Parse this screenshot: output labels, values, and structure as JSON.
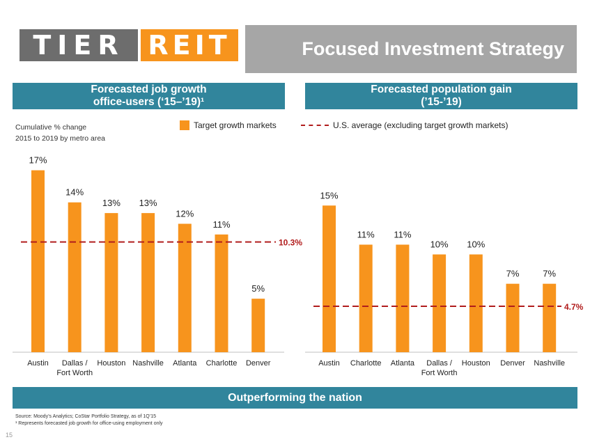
{
  "logo": {
    "part1": "TIER",
    "part2": "REIT"
  },
  "title": "Focused Investment Strategy",
  "left_header": {
    "line1": "Forecasted job growth",
    "line2": "office-users (‘15–’19)¹"
  },
  "right_header": {
    "line1": "Forecasted population gain",
    "line2": "(’15-’19)"
  },
  "note": {
    "line1": "Cumulative % change",
    "line2": "2015 to 2019 by metro area"
  },
  "legend": {
    "target": "Target growth markets",
    "us": "U.S. average (excluding target growth markets)"
  },
  "footer_banner": "Outperforming the nation",
  "source": {
    "line1": "Source: Moody’s Analytics; CoStar Portfolio Strategy, as of 1Q’15",
    "line2": "¹ Represents forecasted job growth for office-using employment only"
  },
  "page_number": "15",
  "colors": {
    "bar": "#f7941d",
    "ref": "#b11c1c",
    "header": "#31859c"
  },
  "chart_data": [
    {
      "type": "bar",
      "title": "Forecasted job growth office-users (‘15–’19)¹",
      "categories": [
        "Austin",
        "Dallas / Fort Worth",
        "Houston",
        "Nashville",
        "Atlanta",
        "Charlotte",
        "Denver"
      ],
      "values": [
        17,
        14,
        13,
        13,
        12,
        11,
        5
      ],
      "labels": [
        "17%",
        "14%",
        "13%",
        "13%",
        "12%",
        "11%",
        "5%"
      ],
      "reference": {
        "value": 10.3,
        "label": "10.3%",
        "name": "U.S. average (excluding target growth markets)"
      },
      "ylim": [
        0,
        17.3
      ]
    },
    {
      "type": "bar",
      "title": "Forecasted population gain (’15-’19)",
      "categories": [
        "Austin",
        "Charlotte",
        "Atlanta",
        "Dallas / Fort Worth",
        "Houston",
        "Denver",
        "Nashville"
      ],
      "values": [
        15,
        11,
        11,
        10,
        10,
        7,
        7
      ],
      "labels": [
        "15%",
        "11%",
        "11%",
        "10%",
        "10%",
        "7%",
        "7%"
      ],
      "reference": {
        "value": 4.7,
        "label": "4.7%",
        "name": "U.S. average (excluding target growth markets)"
      },
      "ylim": [
        0,
        16.8
      ]
    }
  ]
}
